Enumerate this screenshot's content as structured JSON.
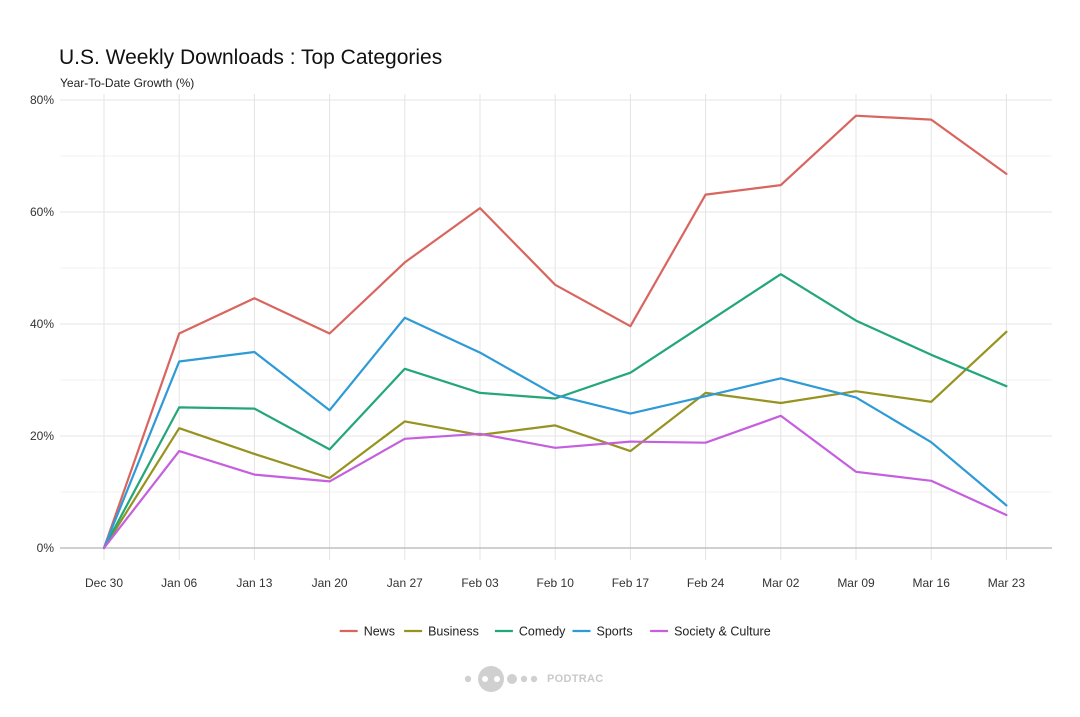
{
  "chart_data": {
    "type": "line",
    "title": "U.S. Weekly Downloads : Top Categories",
    "subtitle": "Year-To-Date Growth (%)",
    "xlabel": "",
    "ylabel": "",
    "categories": [
      "Dec 30",
      "Jan 06",
      "Jan 13",
      "Jan 20",
      "Jan 27",
      "Feb 03",
      "Feb 10",
      "Feb 17",
      "Feb 24",
      "Mar 02",
      "Mar 09",
      "Mar 16",
      "Mar 23"
    ],
    "y_ticks": [
      0,
      20,
      40,
      60,
      80
    ],
    "y_tick_labels": [
      "0%",
      "20%",
      "40%",
      "60%",
      "80%"
    ],
    "ylim": [
      0,
      80
    ],
    "grid": true,
    "legend_position": "bottom",
    "series": [
      {
        "name": "News",
        "color": "#D9655F",
        "values": [
          0,
          38.3,
          44.6,
          38.3,
          51.0,
          60.7,
          47.0,
          39.6,
          63.1,
          64.8,
          77.2,
          76.5,
          66.8
        ]
      },
      {
        "name": "Business",
        "color": "#969320",
        "values": [
          0,
          21.4,
          16.8,
          12.5,
          22.6,
          20.2,
          21.9,
          17.3,
          27.7,
          25.9,
          28.0,
          26.1,
          38.6
        ]
      },
      {
        "name": "Comedy",
        "color": "#23A67A",
        "values": [
          0,
          25.1,
          24.9,
          17.6,
          32.0,
          27.7,
          26.7,
          31.3,
          40.1,
          48.9,
          40.6,
          34.5,
          28.9
        ]
      },
      {
        "name": "Sports",
        "color": "#2E9AD6",
        "values": [
          0,
          33.3,
          35.0,
          24.6,
          41.1,
          34.9,
          27.3,
          24.0,
          27.1,
          30.3,
          26.9,
          18.9,
          7.6
        ]
      },
      {
        "name": "Society & Culture",
        "color": "#C55FDE",
        "values": [
          0,
          17.3,
          13.1,
          11.9,
          19.5,
          20.4,
          17.9,
          19.0,
          18.8,
          23.6,
          13.6,
          12.0,
          5.9
        ]
      }
    ]
  },
  "logo": {
    "icon": "podtrac-dots-icon",
    "text": "PODTRAC"
  }
}
